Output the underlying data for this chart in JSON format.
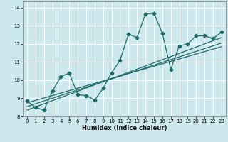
{
  "title": "",
  "xlabel": "Humidex (Indice chaleur)",
  "xlim": [
    -0.5,
    23.5
  ],
  "ylim": [
    8.0,
    14.35
  ],
  "yticks": [
    8,
    9,
    10,
    11,
    12,
    13,
    14
  ],
  "xticks": [
    0,
    1,
    2,
    3,
    4,
    5,
    6,
    7,
    8,
    9,
    10,
    11,
    12,
    13,
    14,
    15,
    16,
    17,
    18,
    19,
    20,
    21,
    22,
    23
  ],
  "bg_color": "#cde8ec",
  "line_color": "#1e6b6b",
  "grid_color": "#ffffff",
  "data_x": [
    0,
    1,
    2,
    3,
    4,
    5,
    6,
    7,
    8,
    9,
    10,
    11,
    12,
    13,
    14,
    15,
    16,
    17,
    18,
    19,
    20,
    21,
    22,
    23
  ],
  "data_y": [
    8.85,
    8.5,
    8.35,
    9.4,
    10.2,
    10.4,
    9.2,
    9.15,
    8.9,
    9.55,
    10.4,
    11.1,
    12.55,
    12.35,
    13.65,
    13.7,
    12.6,
    10.6,
    11.9,
    12.0,
    12.45,
    12.45,
    12.3,
    12.65
  ],
  "trend1_x": [
    0,
    23
  ],
  "trend1_y": [
    8.55,
    12.05
  ],
  "trend2_x": [
    0,
    23
  ],
  "trend2_y": [
    8.75,
    11.85
  ],
  "trend3_x": [
    0,
    23
  ],
  "trend3_y": [
    8.35,
    12.35
  ]
}
